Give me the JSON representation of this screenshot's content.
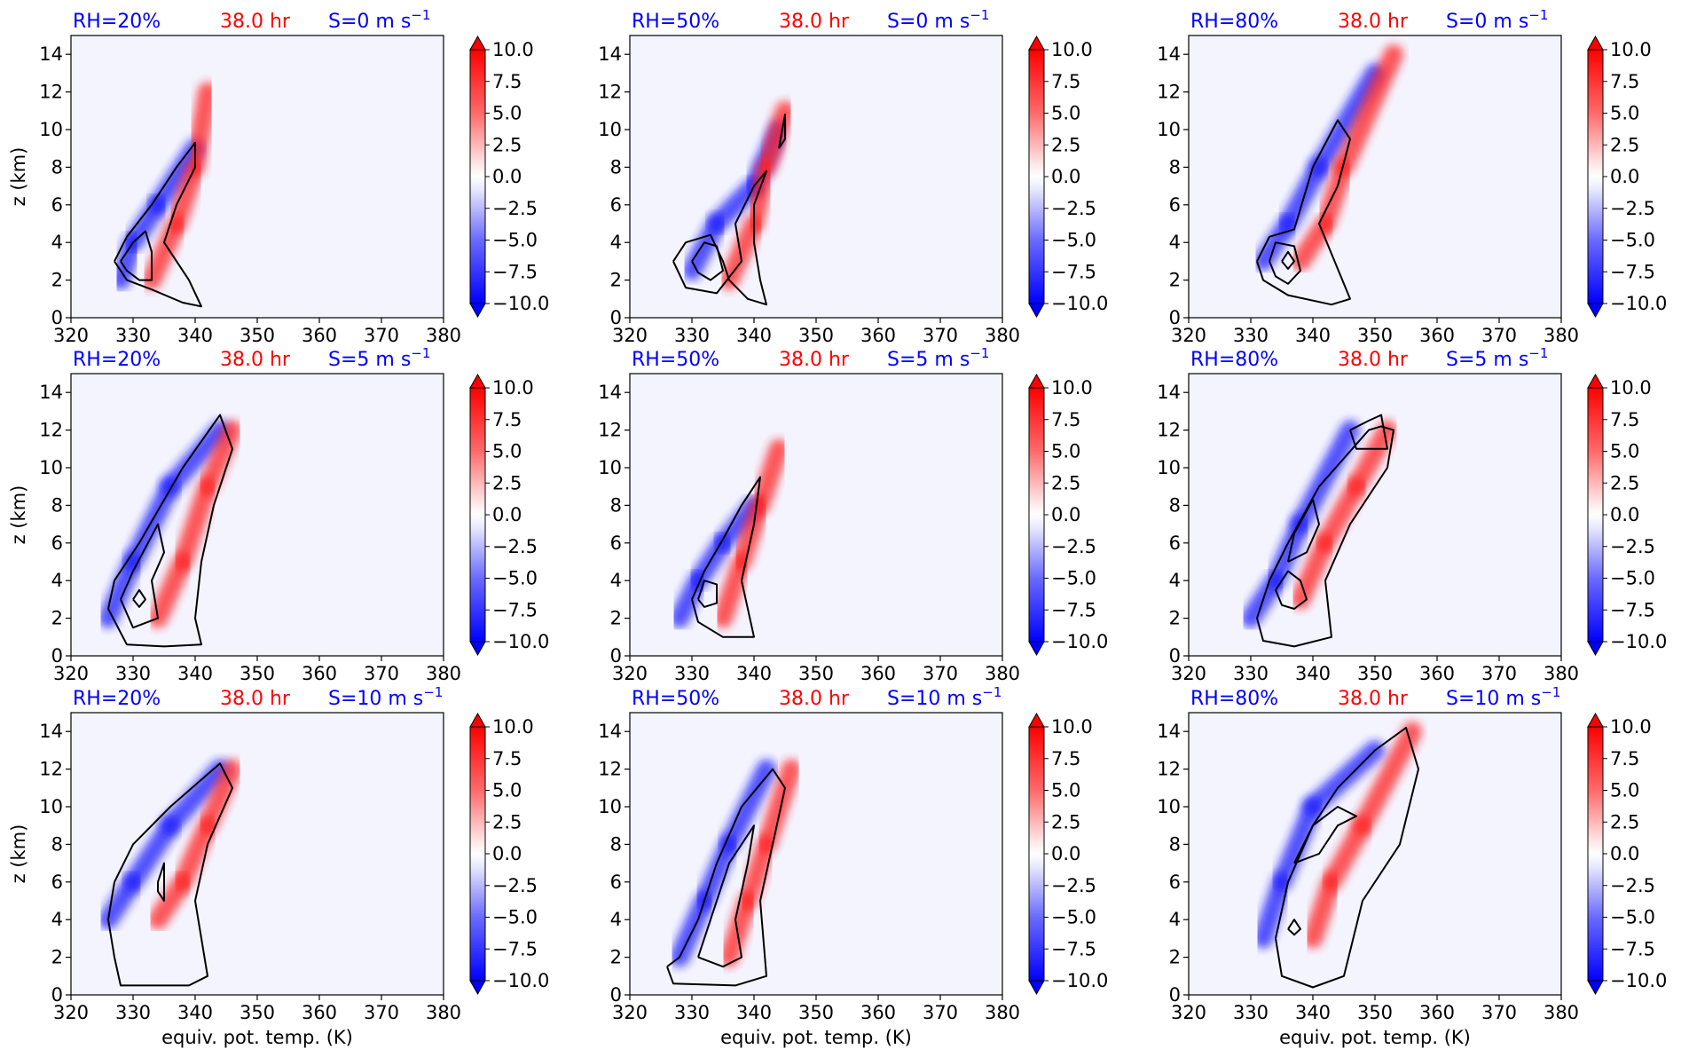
{
  "figure": {
    "colors": {
      "blue_text": "#0000ff",
      "red_text": "#ff0000",
      "contour": "#000000",
      "background": "#f4f4ff"
    },
    "shared_axes": {
      "xlabel": "equiv. pot. temp. (K)",
      "ylabel": "z (km)",
      "xticks": [
        "320",
        "330",
        "340",
        "350",
        "360",
        "370",
        "380"
      ],
      "yticks": [
        "0",
        "2",
        "4",
        "6",
        "8",
        "10",
        "12",
        "14"
      ],
      "xlim": [
        320,
        380
      ],
      "ylim": [
        0,
        15
      ],
      "colorbar_ticks": [
        "10.0",
        "7.5",
        "5.0",
        "2.5",
        "0.0",
        "−2.5",
        "−5.0",
        "−7.5",
        "−10.0"
      ],
      "colorbar_range": [
        -10,
        10
      ]
    }
  },
  "chart_data": [
    {
      "type": "heatmap",
      "rh": "RH=20%",
      "time": "38.0 hr",
      "shear": "S=0 m s",
      "shear_exp": "−1",
      "blue_lobe": [
        [
          328,
          2
        ],
        [
          330,
          4
        ],
        [
          334,
          6
        ],
        [
          340,
          9
        ]
      ],
      "red_lobe": [
        [
          333,
          2
        ],
        [
          337,
          5
        ],
        [
          340,
          8
        ],
        [
          342,
          12
        ]
      ],
      "contours": [
        [
          [
            327,
            3
          ],
          [
            329,
            4.3
          ],
          [
            333,
            6
          ],
          [
            337,
            8
          ],
          [
            340,
            9.3
          ],
          [
            340,
            8
          ],
          [
            337,
            6
          ],
          [
            335,
            4
          ],
          [
            339,
            2
          ],
          [
            341,
            0.6
          ],
          [
            338,
            0.8
          ],
          [
            333,
            1.5
          ],
          [
            329,
            2
          ],
          [
            327,
            3
          ]
        ],
        [
          [
            328,
            3
          ],
          [
            330,
            4
          ],
          [
            332,
            4.6
          ],
          [
            333,
            3.5
          ],
          [
            333,
            2
          ],
          [
            331,
            2
          ],
          [
            329,
            2.5
          ],
          [
            328,
            3
          ]
        ]
      ]
    },
    {
      "type": "heatmap",
      "rh": "RH=50%",
      "time": "38.0 hr",
      "shear": "S=0 m s",
      "shear_exp": "−1",
      "blue_lobe": [
        [
          330,
          2.5
        ],
        [
          334,
          5
        ],
        [
          340,
          7
        ],
        [
          344,
          10
        ]
      ],
      "red_lobe": [
        [
          336,
          2
        ],
        [
          340,
          5
        ],
        [
          342,
          8
        ],
        [
          345,
          11
        ]
      ],
      "contours": [
        [
          [
            327,
            3
          ],
          [
            329,
            4
          ],
          [
            333,
            4.4
          ],
          [
            335,
            3
          ],
          [
            336,
            2
          ],
          [
            339,
            1
          ],
          [
            342,
            0.7
          ],
          [
            341,
            2
          ],
          [
            340,
            4
          ],
          [
            340,
            6
          ],
          [
            342,
            7.8
          ],
          [
            340,
            7
          ],
          [
            337,
            5
          ],
          [
            338,
            3
          ],
          [
            334,
            1.3
          ],
          [
            329,
            1.6
          ],
          [
            327,
            3
          ]
        ],
        [
          [
            330,
            3
          ],
          [
            332,
            4
          ],
          [
            334,
            3.8
          ],
          [
            335,
            2.5
          ],
          [
            333,
            2
          ],
          [
            331,
            2.4
          ],
          [
            330,
            3
          ]
        ],
        [
          [
            344,
            9
          ],
          [
            345,
            10.8
          ],
          [
            345,
            9.5
          ],
          [
            344,
            9
          ]
        ]
      ]
    },
    {
      "type": "heatmap",
      "rh": "RH=80%",
      "time": "38.0 hr",
      "shear": "S=0 m s",
      "shear_exp": "−1",
      "blue_lobe": [
        [
          332,
          3
        ],
        [
          336,
          5
        ],
        [
          341,
          8
        ],
        [
          350,
          13
        ]
      ],
      "red_lobe": [
        [
          338,
          3
        ],
        [
          342,
          5
        ],
        [
          345,
          8
        ],
        [
          353,
          14
        ]
      ],
      "contours": [
        [
          [
            331,
            3
          ],
          [
            333,
            4.3
          ],
          [
            337,
            4.7
          ],
          [
            340,
            8
          ],
          [
            344,
            10.5
          ],
          [
            346,
            9.5
          ],
          [
            344,
            7
          ],
          [
            341,
            5
          ],
          [
            346,
            1
          ],
          [
            343,
            0.7
          ],
          [
            336,
            1.2
          ],
          [
            332,
            2
          ],
          [
            331,
            3
          ]
        ],
        [
          [
            333,
            3
          ],
          [
            334,
            4
          ],
          [
            337,
            3.8
          ],
          [
            338,
            2.5
          ],
          [
            336,
            1.8
          ],
          [
            334,
            2.2
          ],
          [
            333,
            3
          ]
        ],
        [
          [
            335,
            3
          ],
          [
            336,
            3.5
          ],
          [
            337,
            3
          ],
          [
            336,
            2.6
          ],
          [
            335,
            3
          ]
        ]
      ]
    },
    {
      "type": "heatmap",
      "rh": "RH=20%",
      "time": "38.0 hr",
      "shear": "S=5 m s",
      "shear_exp": "−1",
      "blue_lobe": [
        [
          326,
          2
        ],
        [
          330,
          5
        ],
        [
          336,
          9
        ],
        [
          344,
          12
        ]
      ],
      "red_lobe": [
        [
          334,
          2
        ],
        [
          338,
          5
        ],
        [
          342,
          9
        ],
        [
          346,
          12
        ]
      ],
      "contours": [
        [
          [
            326,
            2.5
          ],
          [
            327,
            4
          ],
          [
            331,
            6
          ],
          [
            338,
            10
          ],
          [
            344,
            12.8
          ],
          [
            346,
            11
          ],
          [
            343,
            8
          ],
          [
            341,
            5
          ],
          [
            340,
            2
          ],
          [
            341,
            0.6
          ],
          [
            335,
            0.5
          ],
          [
            329,
            0.6
          ],
          [
            326,
            2.5
          ]
        ],
        [
          [
            328,
            3
          ],
          [
            330,
            4.5
          ],
          [
            334,
            7
          ],
          [
            335,
            5.5
          ],
          [
            333,
            4
          ],
          [
            334,
            2
          ],
          [
            330,
            1.5
          ],
          [
            328,
            3
          ]
        ],
        [
          [
            330,
            3
          ],
          [
            331,
            3.5
          ],
          [
            332,
            3
          ],
          [
            331,
            2.6
          ],
          [
            330,
            3
          ]
        ]
      ]
    },
    {
      "type": "heatmap",
      "rh": "RH=50%",
      "time": "38.0 hr",
      "shear": "S=5 m s",
      "shear_exp": "−1",
      "blue_lobe": [
        [
          328,
          2
        ],
        [
          331,
          4
        ],
        [
          335,
          6
        ],
        [
          340,
          8
        ]
      ],
      "red_lobe": [
        [
          335,
          2
        ],
        [
          338,
          5
        ],
        [
          341,
          8
        ],
        [
          344,
          11
        ]
      ],
      "contours": [
        [
          [
            330,
            3
          ],
          [
            332,
            4.5
          ],
          [
            335,
            6.2
          ],
          [
            338,
            8
          ],
          [
            341,
            9.5
          ],
          [
            340,
            7
          ],
          [
            338,
            4
          ],
          [
            340,
            1
          ],
          [
            335,
            1
          ],
          [
            331,
            1.8
          ],
          [
            330,
            3
          ]
        ],
        [
          [
            331,
            3
          ],
          [
            332,
            4
          ],
          [
            334,
            3.8
          ],
          [
            334,
            2.8
          ],
          [
            332,
            2.6
          ],
          [
            331,
            3
          ]
        ]
      ]
    },
    {
      "type": "heatmap",
      "rh": "RH=80%",
      "time": "38.0 hr",
      "shear": "S=5 m s",
      "shear_exp": "−1",
      "blue_lobe": [
        [
          330,
          2
        ],
        [
          334,
          4
        ],
        [
          338,
          7
        ],
        [
          346,
          12
        ]
      ],
      "red_lobe": [
        [
          338,
          3
        ],
        [
          342,
          6
        ],
        [
          347,
          9
        ],
        [
          352,
          12
        ]
      ],
      "contours": [
        [
          [
            331,
            2
          ],
          [
            333,
            4
          ],
          [
            336,
            6
          ],
          [
            341,
            9
          ],
          [
            349,
            12
          ],
          [
            351,
            12.2
          ],
          [
            353,
            12
          ],
          [
            352,
            10
          ],
          [
            346,
            7
          ],
          [
            342,
            4
          ],
          [
            343,
            1
          ],
          [
            337,
            0.5
          ],
          [
            332,
            0.8
          ],
          [
            331,
            2
          ]
        ],
        [
          [
            334,
            3.5
          ],
          [
            336,
            4.5
          ],
          [
            338,
            4
          ],
          [
            339,
            3
          ],
          [
            337,
            2.5
          ],
          [
            335,
            2.7
          ],
          [
            334,
            3.5
          ]
        ],
        [
          [
            336,
            5
          ],
          [
            337,
            6.5
          ],
          [
            340,
            8.3
          ],
          [
            341,
            7
          ],
          [
            339,
            5.5
          ],
          [
            336,
            5
          ]
        ],
        [
          [
            346,
            12
          ],
          [
            349,
            12.5
          ],
          [
            351,
            12.8
          ],
          [
            352,
            11
          ],
          [
            347,
            11
          ],
          [
            346,
            12
          ]
        ]
      ]
    },
    {
      "type": "heatmap",
      "rh": "RH=20%",
      "time": "38.0 hr",
      "shear": "S=10 m s",
      "shear_exp": "−1",
      "blue_lobe": [
        [
          326,
          4
        ],
        [
          330,
          6
        ],
        [
          336,
          9
        ],
        [
          344,
          12
        ]
      ],
      "red_lobe": [
        [
          334,
          4
        ],
        [
          338,
          6
        ],
        [
          342,
          9
        ],
        [
          346,
          12
        ]
      ],
      "contours": [
        [
          [
            327,
            6
          ],
          [
            330,
            8
          ],
          [
            336,
            10
          ],
          [
            344,
            12.3
          ],
          [
            346,
            11
          ],
          [
            342,
            8
          ],
          [
            340,
            5
          ],
          [
            342,
            1
          ],
          [
            339,
            0.5
          ],
          [
            328,
            0.5
          ],
          [
            327,
            2
          ],
          [
            326,
            4
          ],
          [
            327,
            6
          ]
        ],
        [
          [
            334,
            6
          ],
          [
            335,
            7
          ],
          [
            335,
            5
          ],
          [
            334,
            5.5
          ],
          [
            334,
            6
          ]
        ]
      ]
    },
    {
      "type": "heatmap",
      "rh": "RH=50%",
      "time": "38.0 hr",
      "shear": "S=10 m s",
      "shear_exp": "−1",
      "blue_lobe": [
        [
          328,
          2
        ],
        [
          332,
          5
        ],
        [
          336,
          8
        ],
        [
          342,
          12
        ]
      ],
      "red_lobe": [
        [
          336,
          2
        ],
        [
          339,
          5
        ],
        [
          342,
          8
        ],
        [
          346,
          12
        ]
      ],
      "contours": [
        [
          [
            326,
            1.5
          ],
          [
            328,
            2
          ],
          [
            331,
            4
          ],
          [
            334,
            7
          ],
          [
            338,
            10
          ],
          [
            343,
            12
          ],
          [
            345,
            11
          ],
          [
            343,
            8
          ],
          [
            341,
            5
          ],
          [
            342,
            1
          ],
          [
            337,
            0.5
          ],
          [
            327,
            0.6
          ],
          [
            326,
            1.5
          ]
        ],
        [
          [
            331,
            2
          ],
          [
            333,
            4
          ],
          [
            336,
            7
          ],
          [
            340,
            9
          ],
          [
            339,
            7
          ],
          [
            337,
            4
          ],
          [
            338,
            2
          ],
          [
            335,
            1.5
          ],
          [
            331,
            2
          ]
        ]
      ]
    },
    {
      "type": "heatmap",
      "rh": "RH=80%",
      "time": "38.0 hr",
      "shear": "S=10 m s",
      "shear_exp": "−1",
      "blue_lobe": [
        [
          332,
          3
        ],
        [
          335,
          6
        ],
        [
          340,
          10
        ],
        [
          350,
          13
        ]
      ],
      "red_lobe": [
        [
          340,
          3
        ],
        [
          343,
          6
        ],
        [
          348,
          9
        ],
        [
          356,
          14
        ]
      ],
      "contours": [
        [
          [
            334,
            3
          ],
          [
            336,
            6
          ],
          [
            340,
            9
          ],
          [
            344,
            11
          ],
          [
            350,
            13
          ],
          [
            355,
            14.2
          ],
          [
            357,
            12
          ],
          [
            354,
            8
          ],
          [
            348,
            5
          ],
          [
            345,
            1
          ],
          [
            340,
            0.4
          ],
          [
            335,
            1
          ],
          [
            334,
            3
          ]
        ],
        [
          [
            337,
            7
          ],
          [
            340,
            9
          ],
          [
            344,
            10
          ],
          [
            347,
            9.5
          ],
          [
            344,
            9
          ],
          [
            341,
            7.5
          ],
          [
            337,
            7
          ]
        ],
        [
          [
            336,
            3.5
          ],
          [
            337,
            4
          ],
          [
            338,
            3.5
          ],
          [
            337,
            3.2
          ],
          [
            336,
            3.5
          ]
        ]
      ]
    }
  ]
}
